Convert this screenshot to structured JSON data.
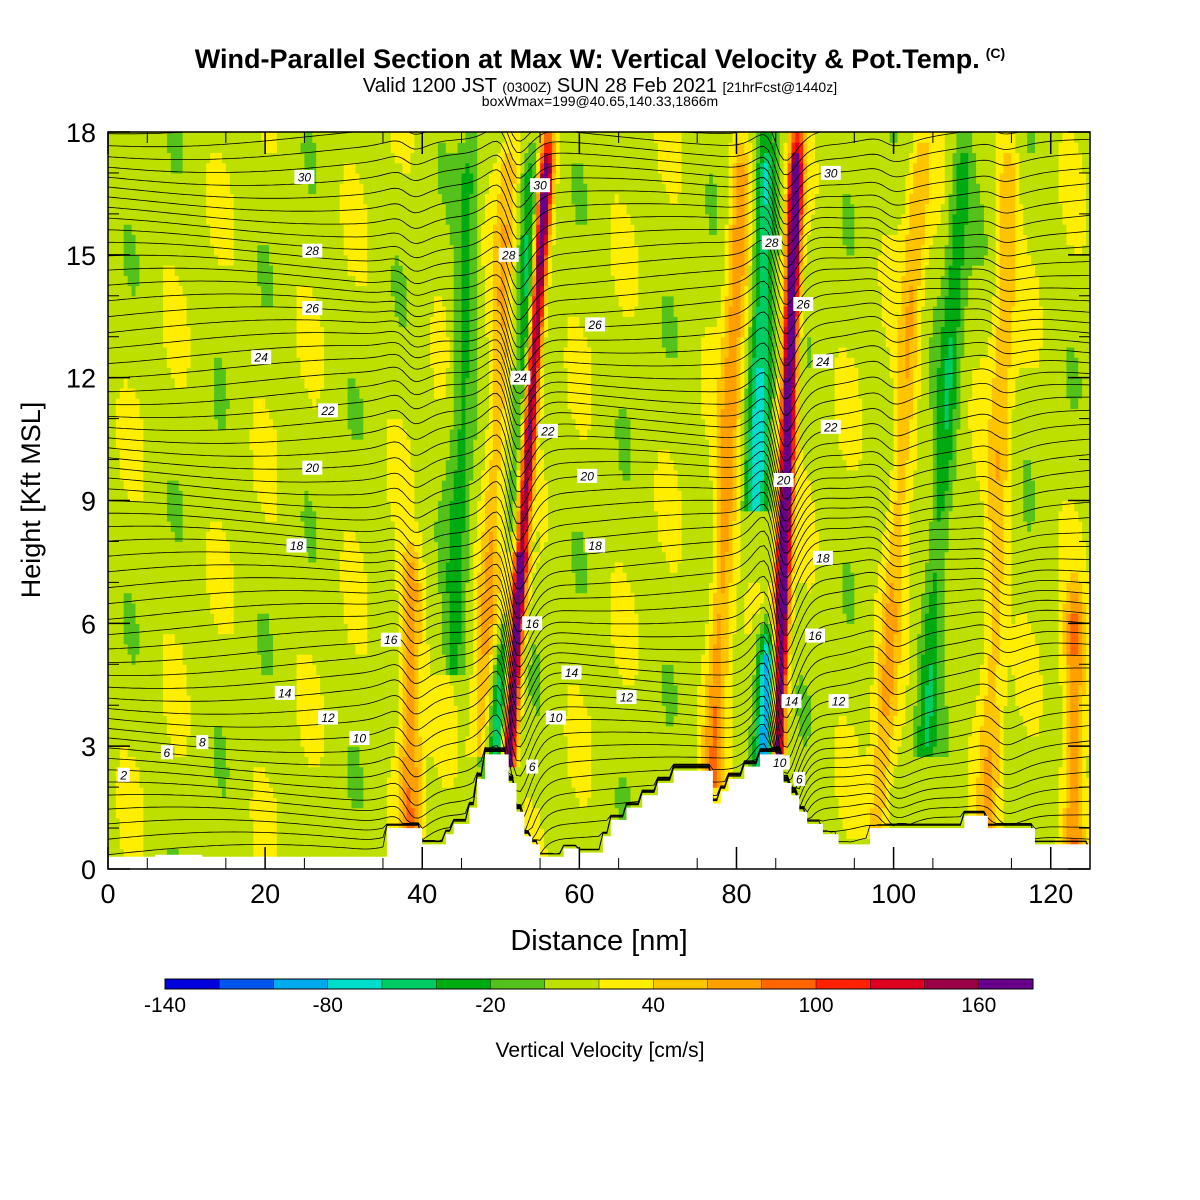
{
  "title": {
    "main": "Wind-Parallel Section at Max W: Vertical Velocity & Pot.Temp.",
    "main_suffix": "(C)",
    "valid_a": "Valid 1200 JST",
    "valid_b": "(0300Z)",
    "valid_c": "SUN 28 Feb 2021",
    "valid_d": "[21hrFcst@1440z]",
    "box": "boxWmax=199@40.65,140.33,1866m"
  },
  "chart_data": {
    "type": "heatmap",
    "xlabel": "Distance [nm]",
    "ylabel": "Height [Kft MSL]",
    "xlim": [
      0,
      125
    ],
    "ylim": [
      0,
      18
    ],
    "xticks": [
      0,
      20,
      40,
      60,
      80,
      100,
      120
    ],
    "yticks": [
      0,
      3,
      6,
      9,
      12,
      15,
      18
    ],
    "colorbar": {
      "label": "Vertical Velocity [cm/s]",
      "ticks": [
        -140,
        -80,
        -20,
        40,
        100,
        160
      ],
      "levels": [
        -140,
        -120,
        -100,
        -80,
        -60,
        -40,
        -20,
        0,
        20,
        40,
        60,
        80,
        100,
        120,
        140,
        160,
        180
      ],
      "colors": [
        "#0000dd",
        "#0055ee",
        "#00aaee",
        "#00ddcc",
        "#00cc66",
        "#00aa11",
        "#55c21c",
        "#bde000",
        "#ffee00",
        "#ffc400",
        "#ffa000",
        "#ff6600",
        "#ff2200",
        "#dd0022",
        "#990044",
        "#660088"
      ]
    },
    "terrain": [
      [
        0,
        0.3
      ],
      [
        6,
        0.3
      ],
      [
        6,
        0.35
      ],
      [
        12,
        0.35
      ],
      [
        12,
        0.3
      ],
      [
        35.5,
        0.3
      ],
      [
        35.5,
        1
      ],
      [
        40,
        1
      ],
      [
        40,
        0.6
      ],
      [
        43,
        0.6
      ],
      [
        43,
        0.85
      ],
      [
        44,
        0.85
      ],
      [
        44,
        1.1
      ],
      [
        46,
        1.1
      ],
      [
        46,
        1.5
      ],
      [
        47,
        1.5
      ],
      [
        47,
        2.2
      ],
      [
        48,
        2.2
      ],
      [
        48,
        2.8
      ],
      [
        51,
        2.8
      ],
      [
        51,
        2.1
      ],
      [
        52,
        2.1
      ],
      [
        52,
        1.4
      ],
      [
        53,
        1.4
      ],
      [
        53,
        0.8
      ],
      [
        54,
        0.8
      ],
      [
        54,
        0.6
      ],
      [
        55,
        0.6
      ],
      [
        55,
        0.3
      ],
      [
        58,
        0.3
      ],
      [
        58,
        0.5
      ],
      [
        60,
        0.5
      ],
      [
        60,
        0.4
      ],
      [
        63,
        0.4
      ],
      [
        63,
        0.8
      ],
      [
        64,
        0.8
      ],
      [
        64,
        1.2
      ],
      [
        66,
        1.2
      ],
      [
        66,
        1.5
      ],
      [
        68,
        1.5
      ],
      [
        68,
        1.8
      ],
      [
        70,
        1.8
      ],
      [
        70,
        2.1
      ],
      [
        72,
        2.1
      ],
      [
        72,
        2.4
      ],
      [
        77,
        2.4
      ],
      [
        77,
        1.6
      ],
      [
        78,
        1.6
      ],
      [
        78,
        1.9
      ],
      [
        79,
        1.9
      ],
      [
        79,
        2.2
      ],
      [
        81,
        2.2
      ],
      [
        81,
        2.5
      ],
      [
        83,
        2.5
      ],
      [
        83,
        2.8
      ],
      [
        86,
        2.8
      ],
      [
        86,
        2.1
      ],
      [
        87,
        2.1
      ],
      [
        87,
        1.8
      ],
      [
        88,
        1.8
      ],
      [
        88,
        1.4
      ],
      [
        89,
        1.4
      ],
      [
        89,
        1.1
      ],
      [
        91,
        1.1
      ],
      [
        91,
        0.85
      ],
      [
        93,
        0.85
      ],
      [
        93,
        0.6
      ],
      [
        97,
        0.6
      ],
      [
        97,
        1.0
      ],
      [
        109,
        1.0
      ],
      [
        109,
        1.3
      ],
      [
        112,
        1.3
      ],
      [
        112,
        1.0
      ],
      [
        118,
        1.0
      ],
      [
        118,
        0.6
      ],
      [
        125,
        0.6
      ],
      [
        125,
        0
      ]
    ],
    "updrafts": [
      {
        "x": 51.0,
        "z0": 2.8,
        "z1": 18,
        "lean": 2.0,
        "w": 185
      },
      {
        "x": 85.2,
        "z0": 2.8,
        "z1": 18,
        "lean": 1.0,
        "w": 199
      },
      {
        "x": 38.5,
        "z0": 1.0,
        "z1": 8,
        "lean": 0.0,
        "w": 65
      },
      {
        "x": 123.0,
        "z0": 0.6,
        "z1": 7,
        "lean": 0.0,
        "w": 70
      },
      {
        "x": 77.0,
        "z0": 2.4,
        "z1": 18,
        "lean": 1.5,
        "w": 60
      },
      {
        "x": 47.5,
        "z0": 3.0,
        "z1": 18,
        "lean": 1.5,
        "w": 45
      },
      {
        "x": 98.0,
        "z0": 1.0,
        "z1": 18,
        "lean": 2.0,
        "w": 45
      },
      {
        "x": 112.0,
        "z0": 1.3,
        "z1": 18,
        "lean": 1.0,
        "w": 42
      }
    ],
    "downdrafts": [
      {
        "x": 49.5,
        "z0": 2.8,
        "z1": 6,
        "lean": 2.0,
        "w": -75
      },
      {
        "x": 83.9,
        "z0": 2.8,
        "z1": 6,
        "lean": 0.5,
        "w": -125
      },
      {
        "x": 52.5,
        "z0": 8,
        "z1": 18,
        "lean": 1.0,
        "w": -55
      },
      {
        "x": 82.5,
        "z0": 9,
        "z1": 18,
        "lean": 1.0,
        "w": -75
      },
      {
        "x": 104.0,
        "z0": 3,
        "z1": 18,
        "lean": 2.0,
        "w": -45
      },
      {
        "x": 44.0,
        "z0": 5,
        "z1": 18,
        "lean": 1.0,
        "w": -38
      }
    ],
    "theta_labels": [
      {
        "v": "2",
        "x": 2,
        "y": 2.3
      },
      {
        "v": "6",
        "x": 7.5,
        "y": 2.85
      },
      {
        "v": "8",
        "x": 12,
        "y": 3.1
      },
      {
        "v": "10",
        "x": 32,
        "y": 3.2
      },
      {
        "v": "12",
        "x": 28,
        "y": 3.7
      },
      {
        "v": "14",
        "x": 22.5,
        "y": 4.3
      },
      {
        "v": "16",
        "x": 36,
        "y": 5.6
      },
      {
        "v": "18",
        "x": 24,
        "y": 7.9
      },
      {
        "v": "20",
        "x": 26,
        "y": 9.8
      },
      {
        "v": "22",
        "x": 28,
        "y": 11.2
      },
      {
        "v": "24",
        "x": 19.5,
        "y": 12.5
      },
      {
        "v": "26",
        "x": 26,
        "y": 13.7
      },
      {
        "v": "28",
        "x": 26,
        "y": 15.1
      },
      {
        "v": "30",
        "x": 25,
        "y": 16.9
      },
      {
        "v": "6",
        "x": 54,
        "y": 2.5
      },
      {
        "v": "10",
        "x": 57,
        "y": 3.7
      },
      {
        "v": "12",
        "x": 66,
        "y": 4.2
      },
      {
        "v": "14",
        "x": 59,
        "y": 4.8
      },
      {
        "v": "16",
        "x": 54,
        "y": 6.0
      },
      {
        "v": "18",
        "x": 62,
        "y": 7.9
      },
      {
        "v": "20",
        "x": 61,
        "y": 9.6
      },
      {
        "v": "22",
        "x": 56,
        "y": 10.7
      },
      {
        "v": "24",
        "x": 52.5,
        "y": 12.0
      },
      {
        "v": "26",
        "x": 62,
        "y": 13.3
      },
      {
        "v": "28",
        "x": 51,
        "y": 15.0
      },
      {
        "v": "30",
        "x": 55,
        "y": 16.7
      },
      {
        "v": "6",
        "x": 88,
        "y": 2.2
      },
      {
        "v": "10",
        "x": 85.5,
        "y": 2.6
      },
      {
        "v": "14",
        "x": 87,
        "y": 4.1
      },
      {
        "v": "12",
        "x": 93,
        "y": 4.1
      },
      {
        "v": "16",
        "x": 90,
        "y": 5.7
      },
      {
        "v": "18",
        "x": 91,
        "y": 7.6
      },
      {
        "v": "20",
        "x": 86,
        "y": 9.5
      },
      {
        "v": "22",
        "x": 92,
        "y": 10.8
      },
      {
        "v": "24",
        "x": 91,
        "y": 12.4
      },
      {
        "v": "26",
        "x": 88.5,
        "y": 13.8
      },
      {
        "v": "28",
        "x": 84.5,
        "y": 15.3
      },
      {
        "v": "30",
        "x": 92,
        "y": 17.0
      }
    ]
  }
}
